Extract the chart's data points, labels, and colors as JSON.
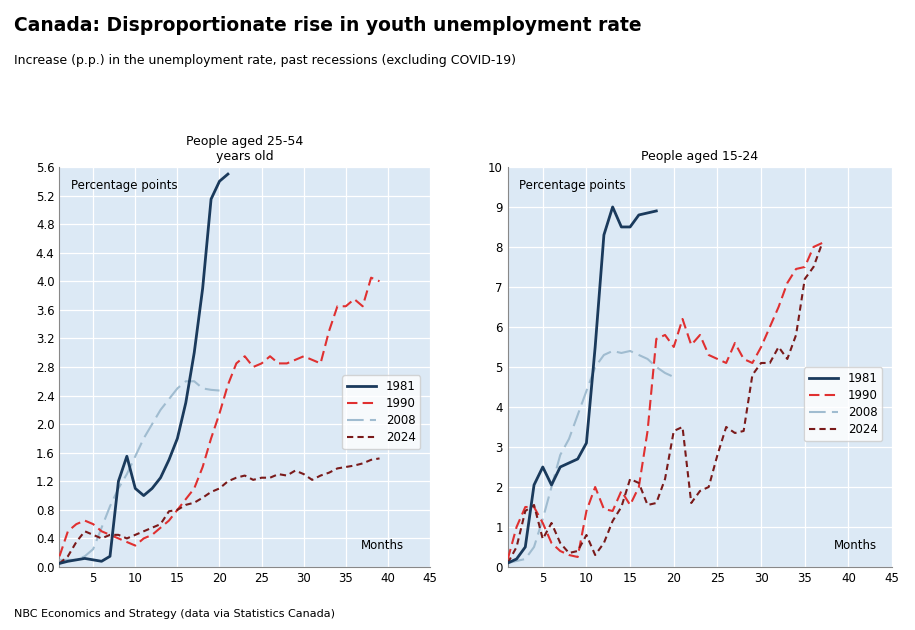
{
  "title": "Canada: Disproportionate rise in youth unemployment rate",
  "subtitle": "Increase (p.p.) in the unemployment rate, past recessions (excluding COVID-19)",
  "footnote": "NBC Economics and Strategy (data via Statistics Canada)",
  "left_title": "People aged 25-54\nyears old",
  "right_title": "People aged 15-24",
  "ylabel_label": "Percentage points",
  "xlabel_label": "Months",
  "bg_color": "#dce9f5",
  "left_ylim": [
    0.0,
    5.6
  ],
  "right_ylim": [
    0.0,
    10.0
  ],
  "xlim": [
    1,
    45
  ],
  "left_1981_x": [
    1,
    2,
    3,
    4,
    5,
    6,
    7,
    8,
    9,
    10,
    11,
    12,
    13,
    14,
    15,
    16,
    17,
    18,
    19,
    20,
    21
  ],
  "left_1981_y": [
    0.05,
    0.08,
    0.1,
    0.12,
    0.1,
    0.08,
    0.15,
    1.2,
    1.55,
    1.1,
    1.0,
    1.1,
    1.25,
    1.5,
    1.8,
    2.3,
    3.0,
    3.9,
    5.15,
    5.4,
    5.5
  ],
  "left_1990_x": [
    1,
    2,
    3,
    4,
    5,
    6,
    7,
    8,
    9,
    10,
    11,
    12,
    13,
    14,
    15,
    16,
    17,
    18,
    19,
    20,
    21,
    22,
    23,
    24,
    25,
    26,
    27,
    28,
    29,
    30,
    31,
    32,
    33,
    34,
    35,
    36,
    37,
    38,
    39
  ],
  "left_1990_y": [
    0.15,
    0.5,
    0.6,
    0.65,
    0.6,
    0.5,
    0.45,
    0.4,
    0.35,
    0.3,
    0.4,
    0.45,
    0.55,
    0.65,
    0.8,
    0.95,
    1.1,
    1.4,
    1.8,
    2.15,
    2.55,
    2.85,
    2.95,
    2.8,
    2.85,
    2.95,
    2.85,
    2.85,
    2.9,
    2.95,
    2.9,
    2.85,
    3.3,
    3.65,
    3.65,
    3.75,
    3.65,
    4.05,
    4.0
  ],
  "left_2008_x": [
    1,
    2,
    3,
    4,
    5,
    6,
    7,
    8,
    9,
    10,
    11,
    12,
    13,
    14,
    15,
    16,
    17,
    18,
    19,
    20
  ],
  "left_2008_y": [
    0.1,
    0.1,
    0.1,
    0.15,
    0.25,
    0.55,
    0.85,
    1.1,
    1.3,
    1.55,
    1.8,
    2.0,
    2.2,
    2.35,
    2.5,
    2.6,
    2.6,
    2.5,
    2.48,
    2.47
  ],
  "left_2024_x": [
    1,
    2,
    3,
    4,
    5,
    6,
    7,
    8,
    9,
    10,
    11,
    12,
    13,
    14,
    15,
    16,
    17,
    18,
    19,
    20,
    21,
    22,
    23,
    24,
    25,
    26,
    27,
    28,
    29,
    30,
    31,
    32,
    33,
    34,
    35,
    36,
    37,
    38,
    39
  ],
  "left_2024_y": [
    0.05,
    0.15,
    0.35,
    0.5,
    0.45,
    0.4,
    0.45,
    0.45,
    0.4,
    0.45,
    0.5,
    0.55,
    0.6,
    0.78,
    0.8,
    0.87,
    0.9,
    0.97,
    1.05,
    1.1,
    1.2,
    1.25,
    1.28,
    1.22,
    1.25,
    1.25,
    1.3,
    1.28,
    1.35,
    1.3,
    1.22,
    1.28,
    1.32,
    1.38,
    1.4,
    1.42,
    1.45,
    1.5,
    1.52
  ],
  "right_1981_x": [
    1,
    2,
    3,
    4,
    5,
    6,
    7,
    8,
    9,
    10,
    11,
    12,
    13,
    14,
    15,
    16,
    17,
    18
  ],
  "right_1981_y": [
    0.1,
    0.2,
    0.5,
    2.05,
    2.5,
    2.05,
    2.5,
    2.6,
    2.7,
    3.1,
    5.5,
    8.3,
    9.0,
    8.5,
    8.5,
    8.8,
    8.85,
    8.9
  ],
  "right_1990_x": [
    1,
    2,
    3,
    4,
    5,
    6,
    7,
    8,
    9,
    10,
    11,
    12,
    13,
    14,
    15,
    16,
    17,
    18,
    19,
    20,
    21,
    22,
    23,
    24,
    25,
    26,
    27,
    28,
    29,
    30,
    31,
    32,
    33,
    34,
    35,
    36,
    37
  ],
  "right_1990_y": [
    0.2,
    1.0,
    1.5,
    1.5,
    1.1,
    0.6,
    0.4,
    0.3,
    0.25,
    1.4,
    2.0,
    1.45,
    1.4,
    1.9,
    1.55,
    2.0,
    3.4,
    5.7,
    5.8,
    5.5,
    6.2,
    5.55,
    5.8,
    5.3,
    5.2,
    5.1,
    5.6,
    5.2,
    5.1,
    5.5,
    6.0,
    6.5,
    7.1,
    7.45,
    7.5,
    8.0,
    8.1
  ],
  "right_2008_x": [
    1,
    2,
    3,
    4,
    5,
    6,
    7,
    8,
    9,
    10,
    11,
    12,
    13,
    14,
    15,
    16,
    17,
    18,
    19,
    20
  ],
  "right_2008_y": [
    0.1,
    0.15,
    0.2,
    0.5,
    1.2,
    2.0,
    2.8,
    3.2,
    3.8,
    4.4,
    5.0,
    5.3,
    5.4,
    5.35,
    5.4,
    5.3,
    5.2,
    5.0,
    4.85,
    4.75
  ],
  "right_2024_x": [
    1,
    2,
    3,
    4,
    5,
    6,
    7,
    8,
    9,
    10,
    11,
    12,
    13,
    14,
    15,
    16,
    17,
    18,
    19,
    20,
    21,
    22,
    23,
    24,
    25,
    26,
    27,
    28,
    29,
    30,
    31,
    32,
    33,
    34,
    35,
    36,
    37
  ],
  "right_2024_y": [
    0.1,
    0.5,
    1.4,
    1.55,
    0.7,
    1.1,
    0.6,
    0.35,
    0.4,
    0.8,
    0.3,
    0.6,
    1.15,
    1.5,
    2.2,
    2.1,
    1.55,
    1.6,
    2.2,
    3.4,
    3.5,
    1.6,
    1.9,
    2.0,
    2.8,
    3.5,
    3.35,
    3.4,
    4.8,
    5.1,
    5.1,
    5.5,
    5.2,
    5.8,
    7.2,
    7.5,
    8.1
  ],
  "color_1981": "#1a3a5c",
  "color_1990": "#e03030",
  "color_2008": "#a0bcd0",
  "color_2024": "#7a1a1a",
  "left_xticks": [
    5,
    10,
    15,
    20,
    25,
    30,
    35,
    40,
    45
  ],
  "left_yticks": [
    0.0,
    0.4,
    0.8,
    1.2,
    1.6,
    2.0,
    2.4,
    2.8,
    3.2,
    3.6,
    4.0,
    4.4,
    4.8,
    5.2,
    5.6
  ],
  "right_xticks": [
    5,
    10,
    15,
    20,
    25,
    30,
    35,
    40,
    45
  ],
  "right_yticks": [
    0,
    1,
    2,
    3,
    4,
    5,
    6,
    7,
    8,
    9,
    10
  ]
}
